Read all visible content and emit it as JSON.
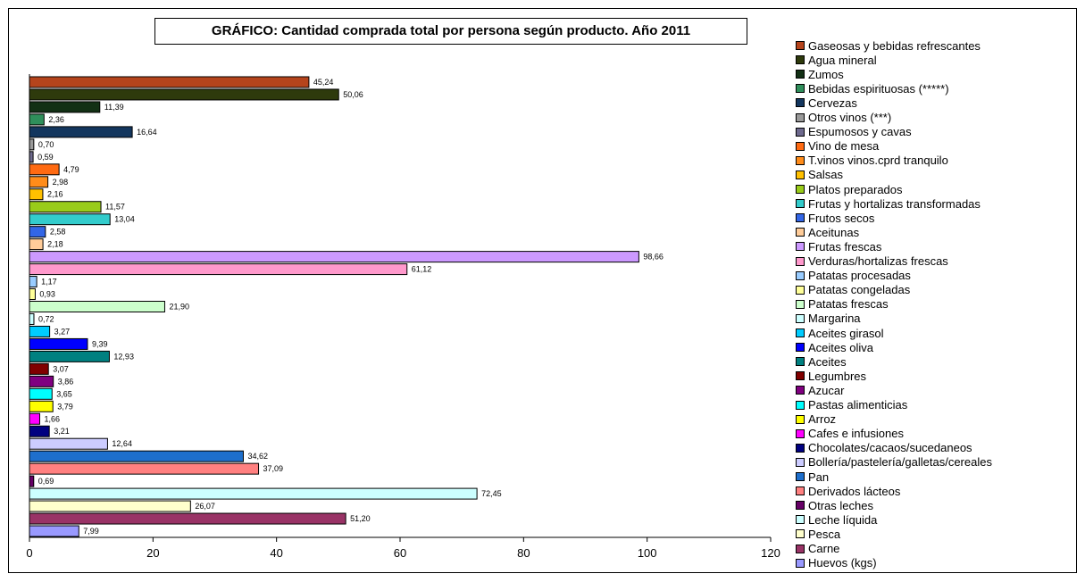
{
  "chart_data": {
    "type": "bar",
    "orientation": "horizontal",
    "title": "GRÁFICO: Cantidad comprada total por persona según producto. Año 2011",
    "xlim": [
      0,
      120
    ],
    "x_ticks": [
      "0",
      "20",
      "40",
      "60",
      "80",
      "100",
      "120"
    ],
    "legend_position": "right",
    "grid": false,
    "categories": [
      "Gaseosas y bebidas refrescantes",
      "Agua mineral",
      "Zumos",
      "Bebidas espirituosas (*****)",
      "Cervezas",
      "Otros vinos (***)",
      "Espumosos y cavas",
      "Vino de mesa",
      "T.vinos vinos.cprd tranquilo",
      "Salsas",
      "Platos preparados",
      "Frutas y hortalizas transformadas",
      "Frutos secos",
      "Aceitunas",
      "Frutas frescas",
      "Verduras/hortalizas frescas",
      "Patatas procesadas",
      "Patatas congeladas",
      "Patatas frescas",
      "Margarina",
      "Aceites girasol",
      "Aceites oliva",
      "Aceites",
      "Legumbres",
      "Azucar",
      "Pastas alimenticias",
      "Arroz",
      "Cafes e infusiones",
      "Chocolates/cacaos/sucedaneos",
      "Bollería/pastelería/galletas/cereales",
      "Pan",
      "Derivados lácteos",
      "Otras leches",
      "Leche líquida",
      "Pesca",
      "Carne",
      "Huevos (kgs)"
    ],
    "values": [
      45.24,
      50.06,
      11.39,
      2.36,
      16.64,
      0.7,
      0.59,
      4.79,
      2.98,
      2.16,
      11.57,
      13.04,
      2.58,
      2.18,
      98.66,
      61.12,
      1.17,
      0.93,
      21.9,
      0.72,
      3.27,
      9.39,
      12.93,
      3.07,
      3.86,
      3.65,
      3.79,
      1.66,
      3.21,
      12.64,
      34.62,
      37.09,
      0.69,
      72.45,
      26.07,
      51.2,
      7.99
    ],
    "value_labels": [
      "45,24",
      "50,06",
      "11,39",
      "2,36",
      "16,64",
      "0,70",
      "0,59",
      "4,79",
      "2,98",
      "2,16",
      "11,57",
      "13,04",
      "2,58",
      "2,18",
      "98,66",
      "61,12",
      "1,17",
      "0,93",
      "21,90",
      "0,72",
      "3,27",
      "9,39",
      "12,93",
      "3,07",
      "3,86",
      "3,65",
      "3,79",
      "1,66",
      "3,21",
      "12,64",
      "34,62",
      "37,09",
      "0,69",
      "72,45",
      "26,07",
      "51,20",
      "7,99"
    ],
    "colors": [
      "#B5441C",
      "#2E3A0C",
      "#123015",
      "#2F8F5B",
      "#13365E",
      "#9A9A9A",
      "#6E6A8E",
      "#FF6A12",
      "#FF8C1A",
      "#FFC000",
      "#99CC1A",
      "#33CCCC",
      "#3366E6",
      "#FFCC99",
      "#CC99FF",
      "#FF99CC",
      "#99CCFF",
      "#FFFF99",
      "#CCFFCC",
      "#CCFFFF",
      "#00CCFF",
      "#0000FF",
      "#008080",
      "#800000",
      "#800080",
      "#00FFFF",
      "#FFFF00",
      "#FF00FF",
      "#000080",
      "#CCCCFF",
      "#1E6FCC",
      "#FF8080",
      "#660066",
      "#CCFFFF",
      "#FFFFCC",
      "#993366",
      "#9999FF"
    ]
  }
}
